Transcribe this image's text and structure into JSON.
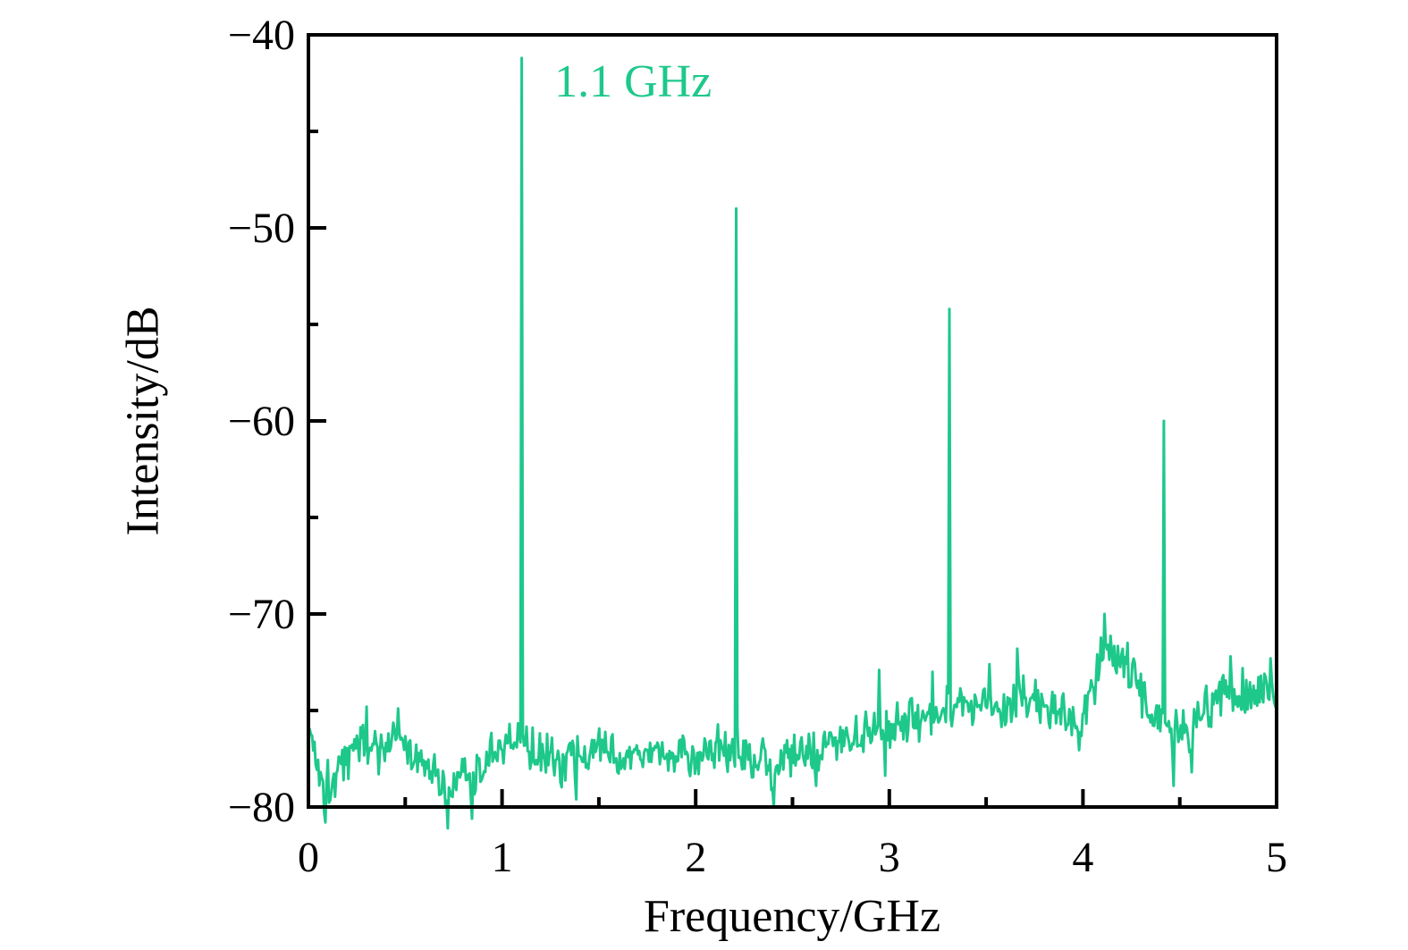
{
  "chart_data": {
    "type": "line",
    "title": "",
    "xlabel": "Frequency/GHz",
    "ylabel": "Intensity/dB",
    "xlim": [
      0,
      5
    ],
    "ylim": [
      -80,
      -40
    ],
    "grid": false,
    "legend": null,
    "xticks_major": [
      0,
      1,
      2,
      3,
      4,
      5
    ],
    "xtick_labels": [
      "0",
      "1",
      "2",
      "3",
      "4",
      "5"
    ],
    "xticks_minor": [
      0.5,
      1.5,
      2.5,
      3.5,
      4.5
    ],
    "yticks_major": [
      -80,
      -70,
      -60,
      -50,
      -40
    ],
    "ytick_labels": [
      "−80",
      "−70",
      "−60",
      "−50",
      "−40"
    ],
    "yticks_minor": [
      -75,
      -65,
      -55,
      -45
    ],
    "line_color": "#1ec88b",
    "axis_color": "#000000",
    "annotation": {
      "text": "1.1 GHz",
      "x_ghz": 1.27,
      "y_db": -43.2
    },
    "peaks": [
      {
        "freq": 1.1,
        "intensity": -41.2
      },
      {
        "freq": 2.21,
        "intensity": -49.0
      },
      {
        "freq": 3.31,
        "intensity": -54.2
      },
      {
        "freq": 4.42,
        "intensity": -60.0
      }
    ],
    "noise_floor_anchors": [
      [
        0.0,
        -75.8
      ],
      [
        0.04,
        -77.5
      ],
      [
        0.09,
        -78.8
      ],
      [
        0.16,
        -78.2
      ],
      [
        0.24,
        -76.6
      ],
      [
        0.33,
        -76.9
      ],
      [
        0.42,
        -76.6
      ],
      [
        0.52,
        -77.2
      ],
      [
        0.62,
        -77.8
      ],
      [
        0.72,
        -79.0
      ],
      [
        0.79,
        -77.9
      ],
      [
        0.86,
        -78.6
      ],
      [
        0.95,
        -77.3
      ],
      [
        1.04,
        -76.6
      ],
      [
        1.1,
        -76.8
      ],
      [
        1.2,
        -77.2
      ],
      [
        1.35,
        -77.5
      ],
      [
        1.5,
        -77.1
      ],
      [
        1.65,
        -77.5
      ],
      [
        1.8,
        -77.2
      ],
      [
        1.95,
        -77.4
      ],
      [
        2.1,
        -76.9
      ],
      [
        2.25,
        -77.2
      ],
      [
        2.4,
        -77.9
      ],
      [
        2.55,
        -77.0
      ],
      [
        2.7,
        -76.6
      ],
      [
        2.85,
        -76.2
      ],
      [
        3.0,
        -75.6
      ],
      [
        3.15,
        -75.3
      ],
      [
        3.3,
        -74.9
      ],
      [
        3.45,
        -74.7
      ],
      [
        3.58,
        -75.0
      ],
      [
        3.66,
        -73.9
      ],
      [
        3.75,
        -74.4
      ],
      [
        3.88,
        -74.9
      ],
      [
        3.98,
        -76.0
      ],
      [
        4.06,
        -72.9
      ],
      [
        4.12,
        -71.4
      ],
      [
        4.18,
        -72.6
      ],
      [
        4.25,
        -72.9
      ],
      [
        4.33,
        -74.9
      ],
      [
        4.42,
        -75.8
      ],
      [
        4.5,
        -76.2
      ],
      [
        4.6,
        -75.3
      ],
      [
        4.72,
        -74.2
      ],
      [
        4.85,
        -74.0
      ],
      [
        5.0,
        -73.5
      ]
    ],
    "noise_features": {
      "dips": [
        [
          0.085,
          -80.8
        ],
        [
          0.72,
          -81.1
        ],
        [
          0.845,
          -80.6
        ],
        [
          1.38,
          -79.6
        ],
        [
          2.4,
          -80.0
        ],
        [
          2.62,
          -78.9
        ],
        [
          4.47,
          -78.9
        ],
        [
          4.56,
          -78.2
        ]
      ],
      "spikes": [
        [
          0.3,
          -74.8
        ],
        [
          0.46,
          -74.9
        ],
        [
          2.95,
          -72.9
        ],
        [
          3.22,
          -73.0
        ],
        [
          3.52,
          -72.6
        ],
        [
          3.66,
          -71.8
        ],
        [
          4.11,
          -70.0
        ],
        [
          4.23,
          -71.5
        ],
        [
          4.76,
          -72.2
        ],
        [
          4.97,
          -72.3
        ]
      ]
    },
    "noise": {
      "seed": 1337,
      "amplitude_db": 1.4,
      "n_points": 800
    }
  }
}
